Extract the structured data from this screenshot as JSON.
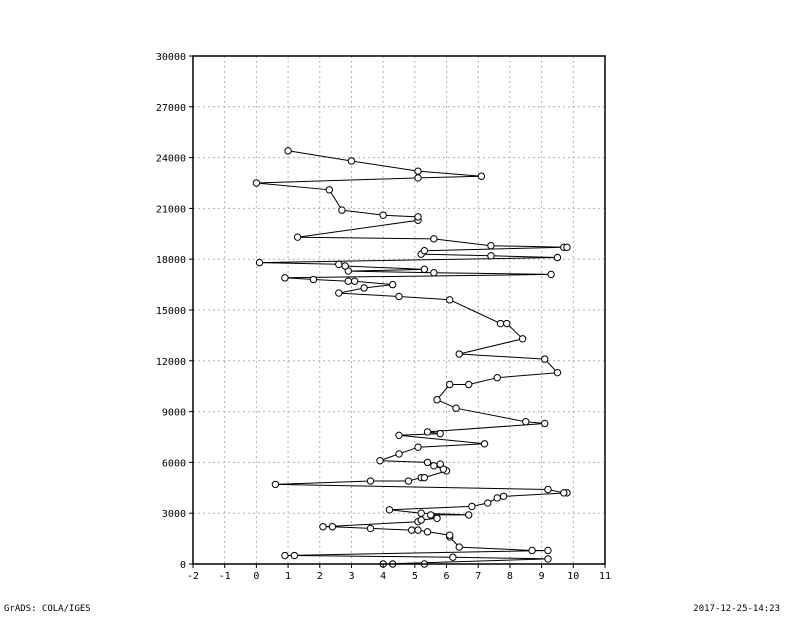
{
  "footer": {
    "left": "GrADS: COLA/IGES",
    "right": "2017-12-25-14:23"
  },
  "chart_data": {
    "type": "line",
    "title": "",
    "xlabel": "",
    "ylabel": "",
    "xlim": [
      -2,
      11
    ],
    "ylim": [
      0,
      30000
    ],
    "xticks": [
      "-2",
      "-1",
      "0",
      "1",
      "2",
      "3",
      "4",
      "5",
      "6",
      "7",
      "8",
      "9",
      "10",
      "11"
    ],
    "yticks": [
      "0",
      "3000",
      "6000",
      "9000",
      "12000",
      "15000",
      "18000",
      "21000",
      "24000",
      "27000",
      "30000"
    ],
    "grid": true,
    "marker": "open-circle",
    "series": [
      {
        "points": [
          [
            5.3,
            0
          ],
          [
            4.3,
            0
          ],
          [
            4.0,
            0
          ],
          [
            9.2,
            300
          ],
          [
            6.2,
            400
          ],
          [
            1.2,
            500
          ],
          [
            0.9,
            500
          ],
          [
            9.2,
            800
          ],
          [
            8.7,
            800
          ],
          [
            6.4,
            1000
          ],
          [
            6.1,
            1600
          ],
          [
            6.1,
            1700
          ],
          [
            5.4,
            1900
          ],
          [
            5.1,
            2000
          ],
          [
            4.9,
            2000
          ],
          [
            3.6,
            2100
          ],
          [
            2.4,
            2200
          ],
          [
            2.1,
            2200
          ],
          [
            5.1,
            2500
          ],
          [
            5.2,
            2600
          ],
          [
            5.7,
            2700
          ],
          [
            5.5,
            2900
          ],
          [
            6.7,
            2900
          ],
          [
            5.2,
            3000
          ],
          [
            4.2,
            3200
          ],
          [
            6.8,
            3400
          ],
          [
            7.3,
            3600
          ],
          [
            7.6,
            3900
          ],
          [
            7.8,
            4000
          ],
          [
            9.8,
            4200
          ],
          [
            9.7,
            4200
          ],
          [
            9.2,
            4400
          ],
          [
            0.6,
            4700
          ],
          [
            3.6,
            4900
          ],
          [
            4.8,
            4900
          ],
          [
            5.2,
            5100
          ],
          [
            5.3,
            5100
          ],
          [
            6.0,
            5500
          ],
          [
            5.9,
            5600
          ],
          [
            5.6,
            5800
          ],
          [
            5.8,
            5900
          ],
          [
            5.4,
            6000
          ],
          [
            3.9,
            6100
          ],
          [
            4.5,
            6500
          ],
          [
            5.1,
            6900
          ],
          [
            7.2,
            7100
          ],
          [
            4.5,
            7600
          ],
          [
            5.8,
            7700
          ],
          [
            5.4,
            7800
          ],
          [
            9.1,
            8300
          ],
          [
            8.5,
            8400
          ],
          [
            6.3,
            9200
          ],
          [
            5.7,
            9700
          ],
          [
            6.1,
            10600
          ],
          [
            6.7,
            10600
          ],
          [
            7.6,
            11000
          ],
          [
            9.5,
            11300
          ],
          [
            9.1,
            12100
          ],
          [
            6.4,
            12400
          ],
          [
            8.4,
            13300
          ],
          [
            7.9,
            14200
          ],
          [
            7.7,
            14200
          ],
          [
            6.1,
            15600
          ],
          [
            4.5,
            15800
          ],
          [
            2.6,
            16000
          ],
          [
            3.4,
            16300
          ],
          [
            4.3,
            16500
          ],
          [
            3.1,
            16700
          ],
          [
            2.9,
            16700
          ],
          [
            1.8,
            16800
          ],
          [
            0.9,
            16900
          ],
          [
            9.3,
            17100
          ],
          [
            5.6,
            17200
          ],
          [
            2.9,
            17300
          ],
          [
            5.3,
            17400
          ],
          [
            2.8,
            17600
          ],
          [
            2.6,
            17700
          ],
          [
            0.1,
            17800
          ],
          [
            9.5,
            18100
          ],
          [
            7.4,
            18200
          ],
          [
            5.2,
            18300
          ],
          [
            5.3,
            18500
          ],
          [
            9.7,
            18700
          ],
          [
            9.8,
            18700
          ],
          [
            7.4,
            18800
          ],
          [
            5.6,
            19200
          ],
          [
            1.3,
            19300
          ],
          [
            5.1,
            20300
          ],
          [
            5.1,
            20500
          ],
          [
            4.0,
            20600
          ],
          [
            2.7,
            20900
          ],
          [
            2.3,
            22100
          ],
          [
            0.0,
            22500
          ],
          [
            5.1,
            22800
          ],
          [
            7.1,
            22900
          ],
          [
            5.1,
            23200
          ],
          [
            3.0,
            23800
          ],
          [
            1.0,
            24400
          ]
        ]
      }
    ]
  }
}
